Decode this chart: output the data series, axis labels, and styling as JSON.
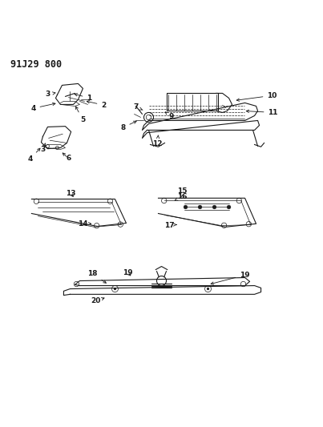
{
  "title": "91J29 800",
  "bg_color": "#ffffff",
  "line_color": "#1a1a1a",
  "figsize": [
    4.03,
    5.33
  ],
  "dpi": 100
}
